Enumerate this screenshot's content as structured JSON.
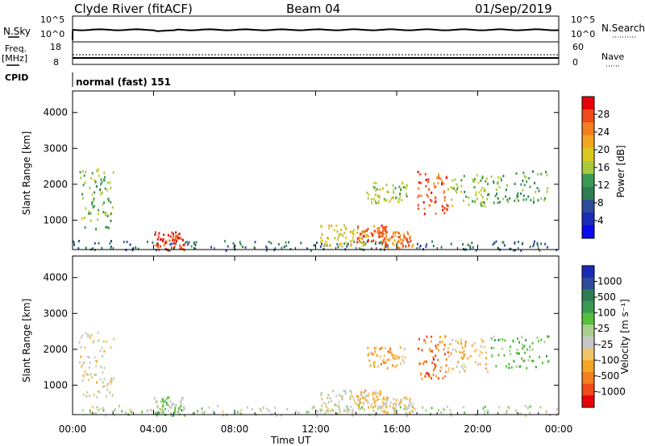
{
  "header": {
    "station": "Clyde River (fitACF)",
    "beam": "Beam 04",
    "date": "01/Sep/2019"
  },
  "panel_labels": {
    "nsky": "N.Sky",
    "nsky_axis_top": "10^5",
    "nsky_axis_bottom": "10^0",
    "nsearch": "N.Search",
    "nsearch_axis_top": "10^5",
    "nsearch_axis_bottom": "10^0",
    "freq": "Freq.",
    "freq_unit": "[MHz]",
    "freq_axis_top": "18",
    "freq_axis_bottom": "8",
    "nave": "Nave",
    "nave_axis_top": "60",
    "nave_axis_bottom": "0",
    "cpid": "CPID",
    "cpid_value": "normal (fast) 151"
  },
  "colorbars": {
    "power": {
      "label": "Power [dB]",
      "ticks": [
        "28",
        "24",
        "20",
        "16",
        "12",
        "8",
        "4"
      ],
      "colors": [
        "#e8000b",
        "#f04a18",
        "#f57e1f",
        "#f3a51d",
        "#d9c920",
        "#a8c93a",
        "#3a9a52",
        "#2e7d52",
        "#2f4c9c",
        "#1b2ab8",
        "#0a0aef"
      ]
    },
    "velocity": {
      "label": "Velocity [m s⁻¹]",
      "ticks": [
        "1000",
        "500",
        "100",
        "25",
        "-25",
        "-100",
        "-500",
        "-1000"
      ],
      "colors": [
        "#1b2ab8",
        "#2f4c9c",
        "#2e7d52",
        "#3a9a52",
        "#55c03a",
        "#a8d08c",
        "#c8c8c8",
        "#f2c46a",
        "#f5a623",
        "#f57e1f",
        "#f04a18",
        "#e8000b"
      ]
    }
  },
  "chart_data": [
    {
      "type": "heatmap",
      "name": "power",
      "title": "",
      "xlabel": "Time UT",
      "ylabel": "Slant Range [km]",
      "x_ticks": [
        "00:00",
        "04:00",
        "08:00",
        "12:00",
        "16:00",
        "20:00",
        "00:00"
      ],
      "y_ticks": [
        "1000",
        "2000",
        "3000",
        "4000"
      ],
      "xlim_hours": [
        0,
        24
      ],
      "ylim_km": [
        180,
        4600
      ],
      "colorbar_label": "Power [dB]",
      "colorbar_range_db": [
        0,
        30
      ],
      "scatter_regions": [
        {
          "t_start_h": 0.0,
          "t_end_h": 24.0,
          "r_min_km": 180,
          "r_max_km": 450,
          "mean_db": 8
        },
        {
          "t_start_h": 4.0,
          "t_end_h": 5.5,
          "r_min_km": 180,
          "r_max_km": 700,
          "mean_db": 28
        },
        {
          "t_start_h": 12.2,
          "t_end_h": 14.5,
          "r_min_km": 300,
          "r_max_km": 900,
          "mean_db": 18
        },
        {
          "t_start_h": 14.0,
          "t_end_h": 15.5,
          "r_min_km": 400,
          "r_max_km": 900,
          "mean_db": 26
        },
        {
          "t_start_h": 15.2,
          "t_end_h": 16.8,
          "r_min_km": 250,
          "r_max_km": 700,
          "mean_db": 24
        },
        {
          "t_start_h": 17.0,
          "t_end_h": 18.5,
          "r_min_km": 1200,
          "r_max_km": 2400,
          "mean_db": 26
        },
        {
          "t_start_h": 14.5,
          "t_end_h": 16.5,
          "r_min_km": 1500,
          "r_max_km": 2100,
          "mean_db": 16
        },
        {
          "t_start_h": 18.5,
          "t_end_h": 20.5,
          "r_min_km": 1400,
          "r_max_km": 2300,
          "mean_db": 14
        },
        {
          "t_start_h": 0.3,
          "t_end_h": 2.0,
          "r_min_km": 700,
          "r_max_km": 2500,
          "mean_db": 14
        },
        {
          "t_start_h": 20.5,
          "t_end_h": 23.5,
          "r_min_km": 1500,
          "r_max_km": 2400,
          "mean_db": 12
        }
      ]
    },
    {
      "type": "heatmap",
      "name": "velocity",
      "title": "",
      "xlabel": "Time UT",
      "ylabel": "Slant Range [km]",
      "x_ticks": [
        "00:00",
        "04:00",
        "08:00",
        "12:00",
        "16:00",
        "20:00",
        "00:00"
      ],
      "y_ticks": [
        "1000",
        "2000",
        "3000",
        "4000"
      ],
      "xlim_hours": [
        0,
        24
      ],
      "ylim_km": [
        180,
        4600
      ],
      "colorbar_label": "Velocity [m s⁻¹]",
      "colorbar_range_ms": [
        -1000,
        1000
      ],
      "scatter_regions": [
        {
          "t_start_h": 0.0,
          "t_end_h": 24.0,
          "r_min_km": 180,
          "r_max_km": 450,
          "mean_ms": 0
        },
        {
          "t_start_h": 4.0,
          "t_end_h": 5.5,
          "r_min_km": 180,
          "r_max_km": 700,
          "mean_ms": 150
        },
        {
          "t_start_h": 12.2,
          "t_end_h": 14.5,
          "r_min_km": 300,
          "r_max_km": 900,
          "mean_ms": -60
        },
        {
          "t_start_h": 14.0,
          "t_end_h": 15.5,
          "r_min_km": 400,
          "r_max_km": 900,
          "mean_ms": -300
        },
        {
          "t_start_h": 15.2,
          "t_end_h": 16.8,
          "r_min_km": 250,
          "r_max_km": 700,
          "mean_ms": -200
        },
        {
          "t_start_h": 17.0,
          "t_end_h": 18.5,
          "r_min_km": 1200,
          "r_max_km": 2400,
          "mean_ms": -700
        },
        {
          "t_start_h": 14.5,
          "t_end_h": 16.5,
          "r_min_km": 1500,
          "r_max_km": 2100,
          "mean_ms": -400
        },
        {
          "t_start_h": 18.5,
          "t_end_h": 20.5,
          "r_min_km": 1400,
          "r_max_km": 2300,
          "mean_ms": -300
        },
        {
          "t_start_h": 0.3,
          "t_end_h": 2.0,
          "r_min_km": 700,
          "r_max_km": 2500,
          "mean_ms": -150
        },
        {
          "t_start_h": 20.5,
          "t_end_h": 23.5,
          "r_min_km": 1500,
          "r_max_km": 2400,
          "mean_ms": 200
        }
      ]
    }
  ]
}
